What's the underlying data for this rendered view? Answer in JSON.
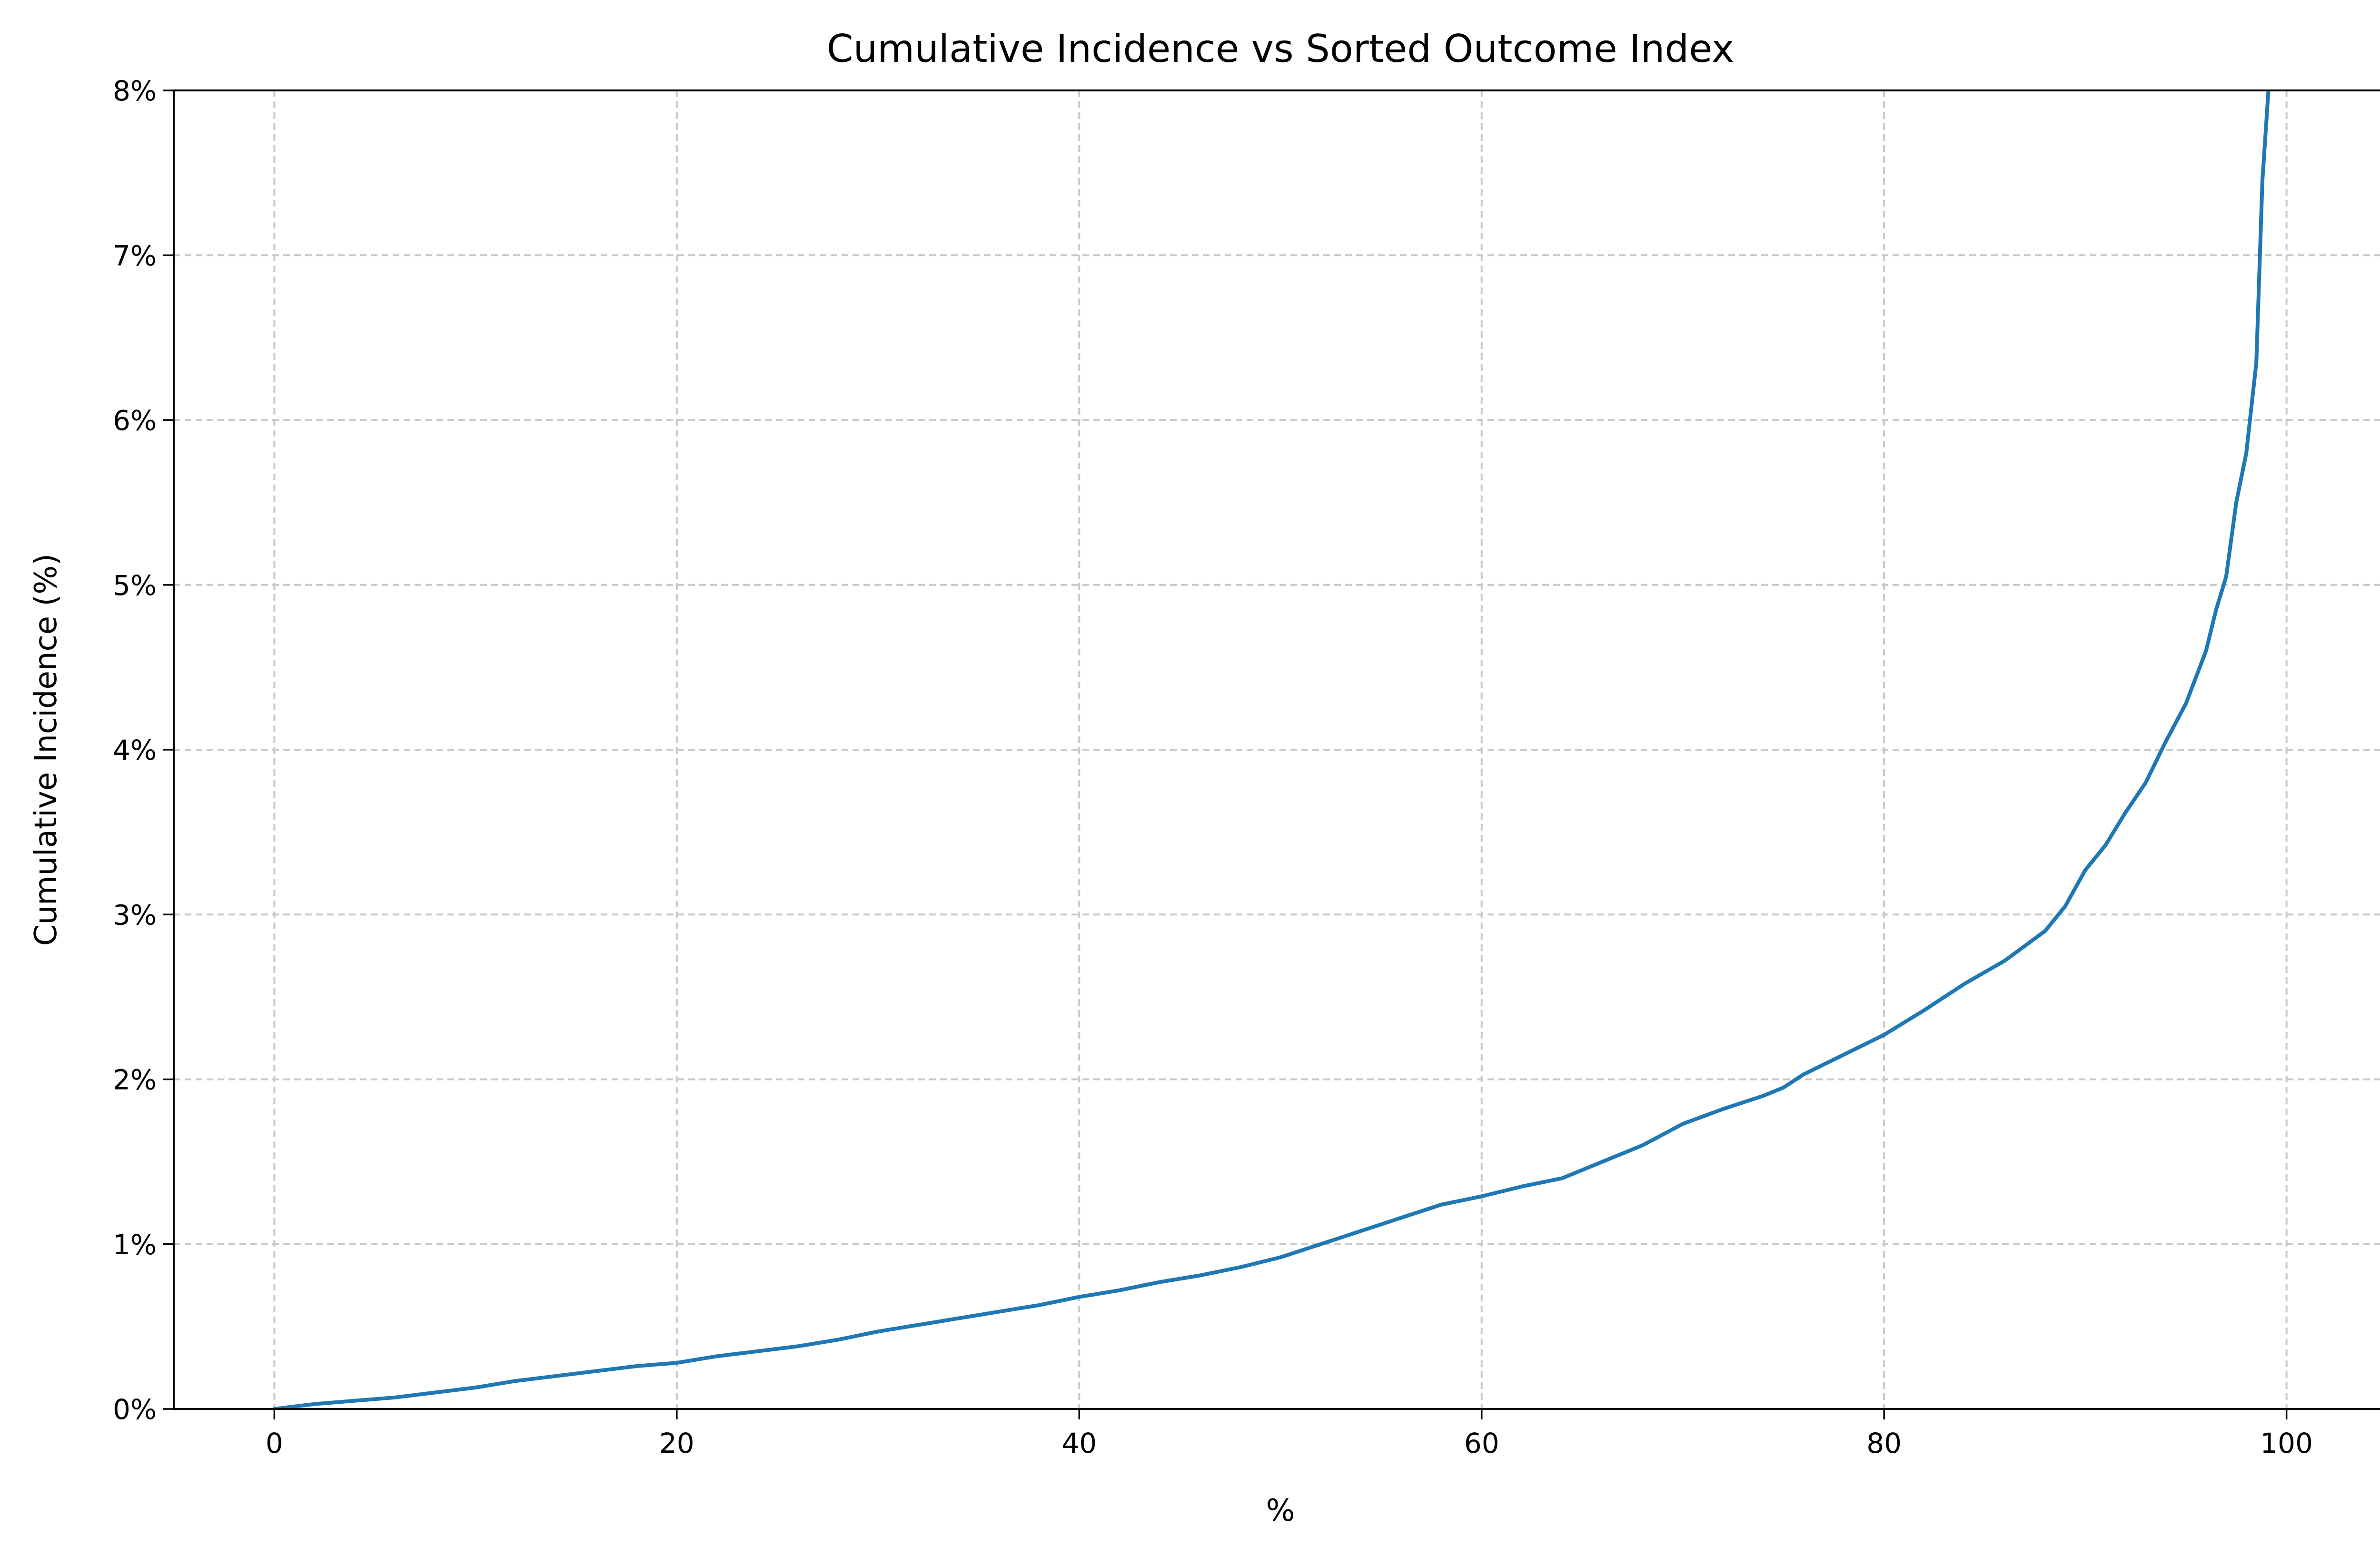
{
  "chart_data": {
    "type": "line",
    "title": "Cumulative Incidence vs Sorted Outcome Index",
    "xlabel": "%",
    "ylabel": "Cumulative Incidence (%)",
    "xlim": [
      -5,
      105
    ],
    "ylim": [
      0,
      8
    ],
    "x_ticks": [
      0,
      20,
      40,
      60,
      80,
      100
    ],
    "x_tick_labels": [
      "0",
      "20",
      "40",
      "60",
      "80",
      "100"
    ],
    "y_ticks": [
      0,
      1,
      2,
      3,
      4,
      5,
      6,
      7,
      8
    ],
    "y_tick_labels": [
      "0%",
      "1%",
      "2%",
      "3%",
      "4%",
      "5%",
      "6%",
      "7%",
      "8%"
    ],
    "grid": true,
    "colors": {
      "line": "#1f77b4",
      "grid": "#c8c8c8"
    },
    "series": [
      {
        "x": [
          0,
          2,
          4,
          6,
          8,
          10,
          12,
          14,
          16,
          18,
          20,
          22,
          24,
          26,
          28,
          30,
          32,
          34,
          36,
          38,
          40,
          42,
          44,
          46,
          48,
          50,
          52,
          54,
          56,
          58,
          60,
          62,
          64,
          66,
          68,
          70,
          72,
          74,
          75,
          76,
          78,
          80,
          82,
          84,
          86,
          88,
          89,
          90,
          91,
          92,
          93,
          94,
          95,
          96,
          96.5,
          97,
          97.5,
          98,
          98.5,
          98.8,
          99.1
        ],
        "y": [
          0.0,
          0.03,
          0.05,
          0.07,
          0.1,
          0.13,
          0.17,
          0.2,
          0.23,
          0.26,
          0.28,
          0.32,
          0.35,
          0.38,
          0.42,
          0.47,
          0.51,
          0.55,
          0.59,
          0.63,
          0.68,
          0.72,
          0.77,
          0.81,
          0.86,
          0.92,
          1.0,
          1.08,
          1.16,
          1.24,
          1.29,
          1.35,
          1.4,
          1.5,
          1.6,
          1.73,
          1.82,
          1.9,
          1.95,
          2.03,
          2.15,
          2.27,
          2.42,
          2.58,
          2.72,
          2.9,
          3.05,
          3.27,
          3.42,
          3.62,
          3.8,
          4.05,
          4.28,
          4.6,
          4.85,
          5.05,
          5.5,
          5.8,
          6.35,
          7.45,
          8.0
        ]
      }
    ]
  }
}
